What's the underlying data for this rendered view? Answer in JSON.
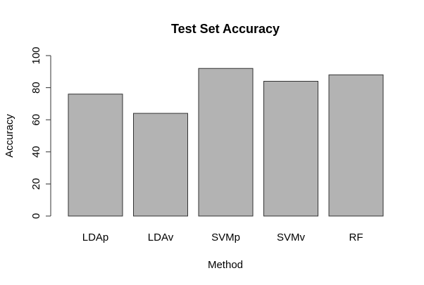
{
  "chart_data": {
    "type": "bar",
    "title": "Test Set Accuracy",
    "xlabel": "Method",
    "ylabel": "Accuracy",
    "categories": [
      "LDAp",
      "LDAv",
      "SVMp",
      "SVMv",
      "RF"
    ],
    "values": [
      76,
      64,
      92,
      84,
      88
    ],
    "ylim": [
      0,
      100
    ],
    "yticks": [
      0,
      20,
      40,
      60,
      80,
      100
    ],
    "bar_color": "#b3b3b3",
    "grid": false,
    "legend": "none"
  }
}
